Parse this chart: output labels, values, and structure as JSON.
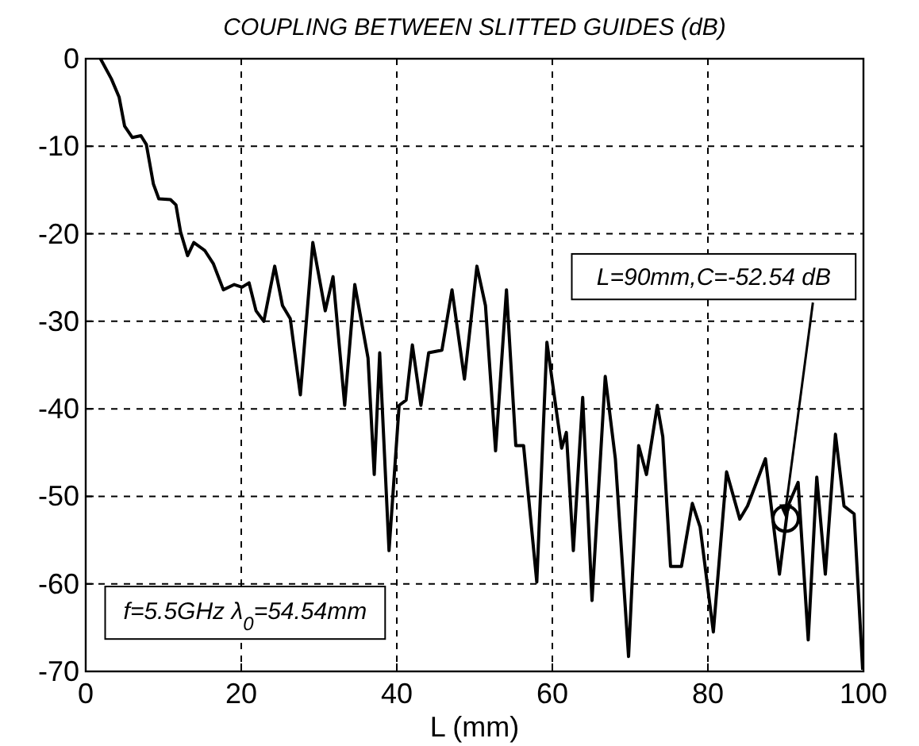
{
  "chart_data": {
    "type": "line",
    "title": "COUPLING BETWEEN SLITTED GUIDES (dB)",
    "xlabel": "L (mm)",
    "xlim": [
      0,
      100
    ],
    "xticks": [
      0,
      20,
      40,
      60,
      80,
      100
    ],
    "ylim": [
      -70,
      0
    ],
    "yticks": [
      -70,
      -60,
      -50,
      -40,
      -30,
      -20,
      -10,
      0
    ],
    "grid": true,
    "line_style": "solid",
    "marker": "none",
    "annotations": [
      {
        "text": "L=90mm,C=-52.54 dB",
        "x": 90,
        "y": -52.54
      },
      "f=5.5GHz λ$_{0}$=54.54mm"
    ],
    "series": [
      {
        "color": "#000000",
        "x": [
          1.9,
          3.3,
          4.3,
          5.0,
          6.0,
          7.1,
          7.8,
          8.7,
          9.4,
          10.9,
          11.6,
          12.2,
          13.1,
          13.9,
          15.3,
          16.4,
          17.7,
          19.1,
          20.1,
          21.0,
          21.9,
          22.9,
          24.3,
          25.3,
          26.3,
          27.6,
          29.2,
          30.8,
          31.8,
          33.3,
          34.6,
          36.3,
          37.1,
          37.8,
          39.0,
          40.3,
          41.2,
          42.0,
          43.1,
          44.1,
          45.8,
          47.1,
          48.7,
          50.3,
          51.4,
          52.7,
          54.1,
          55.3,
          56.3,
          58.0,
          59.3,
          60.7,
          61.2,
          61.8,
          62.7,
          63.9,
          65.1,
          66.8,
          68.1,
          69.8,
          71.1,
          72.1,
          73.5,
          74.2,
          75.2,
          76.6,
          78.0,
          79.0,
          80.7,
          82.4,
          84.1,
          85.1,
          87.4,
          89.2,
          90.3,
          91.6,
          92.9,
          94.0,
          95.1,
          96.4,
          97.5,
          98.8,
          99.9
        ],
        "values": [
          0,
          -2.3,
          -4.4,
          -7.7,
          -9.0,
          -8.8,
          -9.8,
          -14.3,
          -16.0,
          -16.1,
          -16.7,
          -19.8,
          -22.5,
          -21.0,
          -21.9,
          -23.4,
          -26.4,
          -25.8,
          -26.1,
          -25.6,
          -28.8,
          -30.0,
          -23.7,
          -28.2,
          -29.7,
          -38.4,
          -21.0,
          -28.8,
          -24.9,
          -39.6,
          -25.8,
          -34.2,
          -47.5,
          -33.6,
          -56.2,
          -39.6,
          -39.0,
          -32.7,
          -39.6,
          -33.6,
          -33.3,
          -26.4,
          -36.6,
          -23.7,
          -28.2,
          -44.8,
          -26.4,
          -44.2,
          -44.2,
          -59.8,
          -32.4,
          -41.4,
          -44.5,
          -42.7,
          -56.2,
          -38.7,
          -61.9,
          -36.3,
          -45.7,
          -68.3,
          -44.2,
          -47.5,
          -39.6,
          -43.2,
          -58.0,
          -58.0,
          -50.8,
          -53.5,
          -65.5,
          -47.2,
          -52.6,
          -51.1,
          -45.7,
          -58.9,
          -51.1,
          -48.4,
          -66.4,
          -47.8,
          -58.9,
          -42.9,
          -51.1,
          -52.0,
          -69.8
        ]
      }
    ]
  }
}
